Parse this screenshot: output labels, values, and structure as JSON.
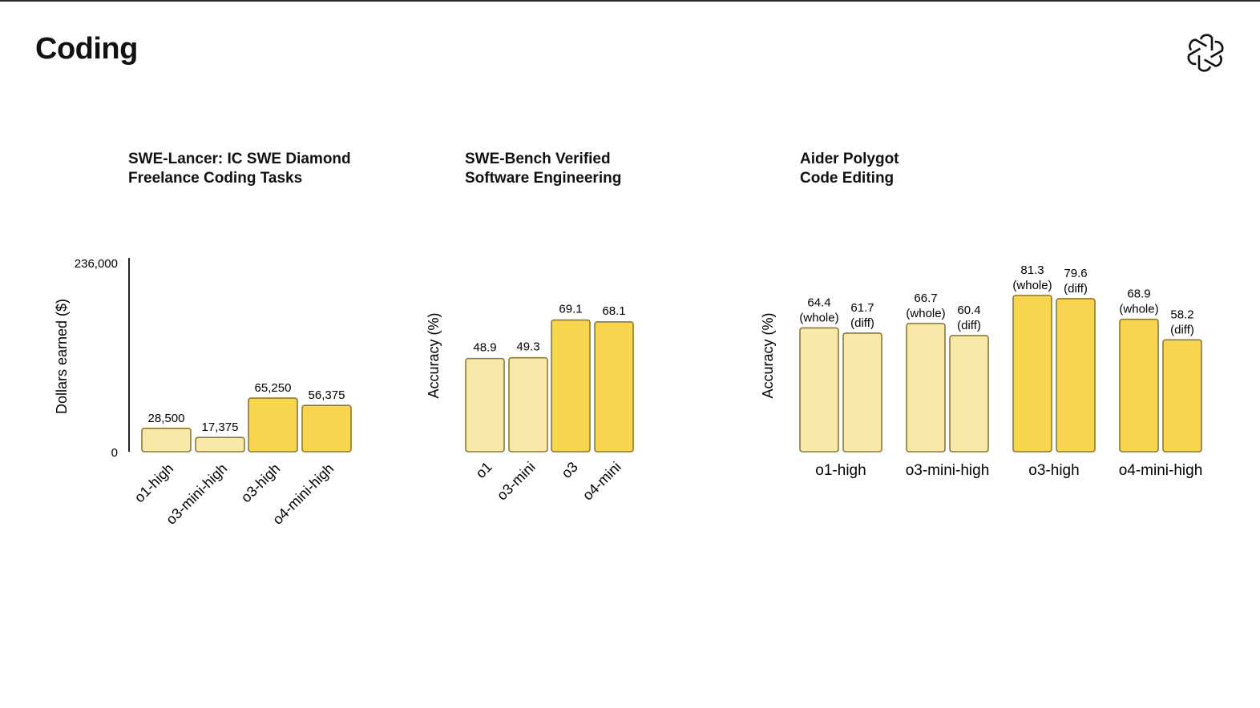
{
  "page": {
    "title": "Coding"
  },
  "colors": {
    "light": "#f8e9a8",
    "dark": "#f8d54e",
    "stroke": "#8a7a3a",
    "axis": "#222222"
  },
  "chart_data": [
    {
      "type": "bar",
      "title_lines": [
        "SWE-Lancer: IC SWE Diamond",
        "Freelance Coding Tasks"
      ],
      "ylabel": "Dollars earned ($)",
      "ylim": [
        0,
        236000
      ],
      "yticks": [
        "0",
        "236,000"
      ],
      "categories": [
        "o1-high",
        "o3-mini-high",
        "o3-high",
        "o4-mini-high"
      ],
      "values": [
        28500,
        17375,
        65250,
        56375
      ],
      "value_labels": [
        "28,500",
        "17,375",
        "65,250",
        "56,375"
      ],
      "shades": [
        "light",
        "light",
        "dark",
        "dark"
      ]
    },
    {
      "type": "bar",
      "title_lines": [
        "SWE-Bench Verified",
        "Software Engineering"
      ],
      "ylabel": "Accuracy (%)",
      "ylim": [
        0,
        100
      ],
      "categories": [
        "o1",
        "o3-mini",
        "o3",
        "o4-mini"
      ],
      "values": [
        48.9,
        49.3,
        69.1,
        68.1
      ],
      "value_labels": [
        "48.9",
        "49.3",
        "69.1",
        "68.1"
      ],
      "shades": [
        "light",
        "light",
        "dark",
        "dark"
      ]
    },
    {
      "type": "bar",
      "title_lines": [
        "Aider Polygot",
        "Code Editing"
      ],
      "ylabel": "Accuracy (%)",
      "ylim": [
        0,
        100
      ],
      "categories": [
        "o1-high",
        "o3-mini-high",
        "o3-high",
        "o4-mini-high"
      ],
      "series": [
        {
          "name": "(whole)",
          "values": [
            64.4,
            66.7,
            81.3,
            68.9
          ]
        },
        {
          "name": "(diff)",
          "values": [
            61.7,
            60.4,
            79.6,
            58.2
          ]
        }
      ],
      "shades": [
        "light",
        "light",
        "dark",
        "dark"
      ]
    }
  ]
}
